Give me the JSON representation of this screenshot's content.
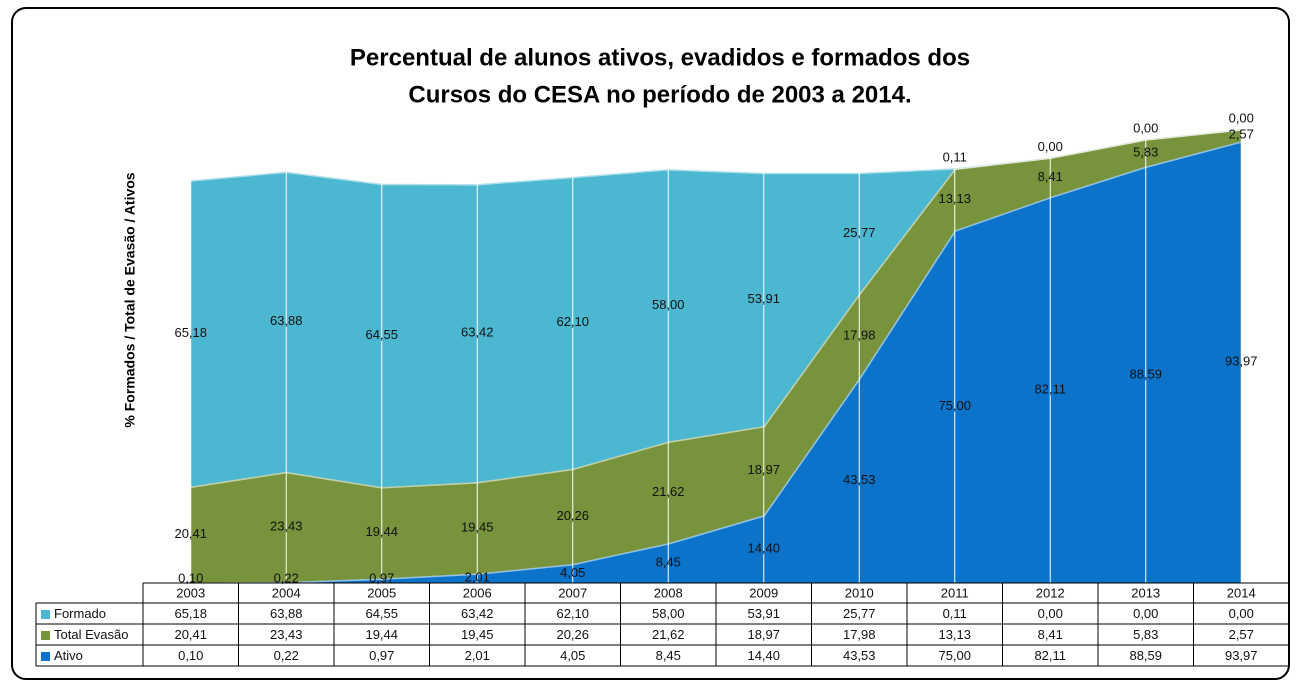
{
  "chart_data": {
    "type": "stacked_area",
    "title": [
      "Percentual de alunos ativos, evadidos e formados dos",
      "Cursos do CESA no período de 2003 a 2014."
    ],
    "y_label": "% Formados / Total de Evasão / Ativos",
    "categories": [
      "2003",
      "2004",
      "2005",
      "2006",
      "2007",
      "2008",
      "2009",
      "2010",
      "2011",
      "2012",
      "2013",
      "2014"
    ],
    "ylim": [
      0,
      100
    ],
    "series": [
      {
        "name": "Formado",
        "color": "#4bb7d1",
        "values": [
          65.18,
          63.88,
          64.55,
          63.42,
          62.1,
          58.0,
          53.91,
          25.77,
          0.11,
          0.0,
          0.0,
          0.0
        ],
        "value_labels": [
          "65,18",
          "63,88",
          "64,55",
          "63,42",
          "62,10",
          "58,00",
          "53,91",
          "25,77",
          "0,11",
          "0,00",
          "0,00",
          "0,00"
        ]
      },
      {
        "name": "Total Evasão",
        "color": "#77933c",
        "values": [
          20.41,
          23.43,
          19.44,
          19.45,
          20.26,
          21.62,
          18.97,
          17.98,
          13.13,
          8.41,
          5.83,
          2.57
        ],
        "value_labels": [
          "20,41",
          "23,43",
          "19,44",
          "19,45",
          "20,26",
          "21,62",
          "18,97",
          "17,98",
          "13,13",
          "8,41",
          "5,83",
          "2,57"
        ]
      },
      {
        "name": "Ativo",
        "color": "#0b73c9",
        "values": [
          0.1,
          0.22,
          0.97,
          2.01,
          4.05,
          8.45,
          14.4,
          43.53,
          75.0,
          82.11,
          88.59,
          93.97
        ],
        "value_labels": [
          "0,10",
          "0,22",
          "0,97",
          "2,01",
          "4,05",
          "8,45",
          "14,40",
          "43,53",
          "75,00",
          "82,11",
          "88,59",
          "93,97"
        ]
      }
    ]
  }
}
